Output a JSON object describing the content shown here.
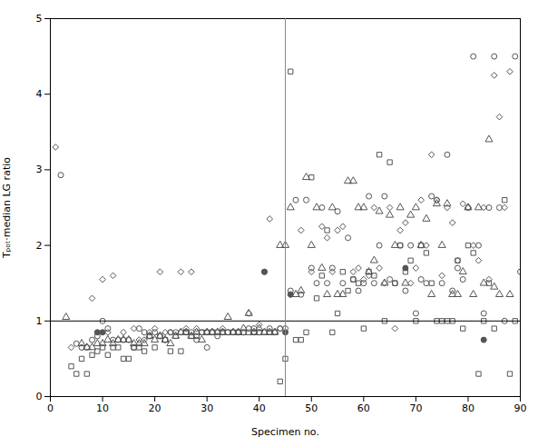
{
  "chart_data": {
    "type": "scatter",
    "xlabel": "Specimen no.",
    "ylabel": "Tₚₒₜ·median LG ratio",
    "xlim": [
      0,
      90
    ],
    "ylim": [
      0,
      5
    ],
    "xticks": [
      0,
      10,
      20,
      30,
      40,
      50,
      60,
      70,
      80,
      90
    ],
    "yticks": [
      0,
      1,
      2,
      3,
      4,
      5
    ],
    "grid": false,
    "series": [
      {
        "marker": "diamond",
        "color": "#555555",
        "x": [
          1,
          4,
          8,
          10,
          11,
          12,
          14,
          16,
          17,
          18,
          19,
          20,
          21,
          22,
          23,
          25,
          26,
          27,
          28,
          30,
          33,
          36,
          38,
          39,
          40,
          42,
          44,
          46,
          48,
          50,
          52,
          53,
          54,
          55,
          56,
          58,
          59,
          60,
          61,
          62,
          63,
          64,
          65,
          66,
          67,
          68,
          69,
          70,
          71,
          72,
          73,
          74,
          75,
          76,
          77,
          78,
          79,
          80,
          81,
          82,
          83,
          84,
          85,
          86,
          87,
          88
        ],
        "values": [
          3.3,
          0.65,
          1.3,
          1.55,
          0.85,
          1.6,
          0.85,
          0.9,
          0.75,
          0.75,
          0.85,
          0.9,
          1.65,
          0.85,
          0.85,
          1.65,
          0.9,
          1.65,
          0.9,
          0.85,
          0.9,
          0.85,
          1.1,
          0.85,
          0.95,
          2.35,
          0.9,
          1.35,
          2.2,
          1.65,
          2.25,
          2.1,
          1.65,
          2.2,
          2.25,
          1.65,
          1.7,
          1.55,
          1.6,
          2.5,
          1.7,
          1.5,
          2.5,
          0.9,
          2.2,
          2.3,
          1.5,
          1.7,
          2.6,
          2.0,
          3.2,
          2.6,
          1.6,
          2.5,
          2.3,
          1.8,
          2.55,
          2.5,
          2.0,
          1.8,
          2.5,
          1.55,
          4.25,
          3.7,
          2.5,
          4.3
        ]
      },
      {
        "marker": "circle",
        "color": "#555555",
        "x": [
          2,
          5,
          6,
          7,
          8,
          9,
          10,
          11,
          12,
          13,
          14,
          15,
          16,
          17,
          18,
          19,
          20,
          21,
          22,
          23,
          24,
          25,
          26,
          27,
          28,
          29,
          30,
          31,
          32,
          33,
          34,
          35,
          36,
          37,
          38,
          39,
          40,
          41,
          42,
          43,
          44,
          45,
          46,
          47,
          48,
          49,
          50,
          51,
          52,
          53,
          54,
          55,
          56,
          57,
          58,
          59,
          60,
          61,
          62,
          63,
          64,
          65,
          66,
          67,
          68,
          69,
          70,
          71,
          72,
          73,
          74,
          75,
          76,
          77,
          78,
          79,
          80,
          81,
          82,
          83,
          84,
          85,
          86,
          87,
          89,
          90
        ],
        "values": [
          2.93,
          0.7,
          0.65,
          0.65,
          0.75,
          0.8,
          1.0,
          0.9,
          0.75,
          0.75,
          0.75,
          0.75,
          0.65,
          0.9,
          0.85,
          0.8,
          0.85,
          0.8,
          0.75,
          0.85,
          0.85,
          0.85,
          0.85,
          0.85,
          0.75,
          0.85,
          0.65,
          0.85,
          0.8,
          0.85,
          0.85,
          0.85,
          0.85,
          0.85,
          0.9,
          0.9,
          0.85,
          1.65,
          0.9,
          0.85,
          0.9,
          0.9,
          1.4,
          2.6,
          1.35,
          2.6,
          1.7,
          1.5,
          2.5,
          1.5,
          1.7,
          2.45,
          1.5,
          2.1,
          1.55,
          1.4,
          1.5,
          2.65,
          1.5,
          2.0,
          2.65,
          1.55,
          1.5,
          2.0,
          1.4,
          2.0,
          1.1,
          1.55,
          1.5,
          2.65,
          2.6,
          1.5,
          3.2,
          1.4,
          1.7,
          1.55,
          2.5,
          4.5,
          2.0,
          1.1,
          2.5,
          4.5,
          2.5,
          1.0,
          4.5,
          1.65
        ]
      },
      {
        "marker": "triangle",
        "color": "#555555",
        "x": [
          3,
          6,
          7,
          8,
          9,
          10,
          11,
          12,
          13,
          14,
          15,
          16,
          17,
          18,
          19,
          20,
          21,
          22,
          23,
          24,
          25,
          26,
          27,
          28,
          29,
          30,
          31,
          32,
          33,
          34,
          35,
          36,
          37,
          38,
          39,
          40,
          41,
          42,
          43,
          44,
          45,
          46,
          47,
          48,
          49,
          50,
          51,
          52,
          53,
          54,
          55,
          56,
          57,
          58,
          59,
          60,
          61,
          62,
          63,
          64,
          65,
          66,
          67,
          68,
          69,
          70,
          71,
          72,
          73,
          74,
          75,
          76,
          77,
          78,
          79,
          80,
          81,
          82,
          83,
          84,
          85,
          86,
          88
        ],
        "values": [
          1.05,
          0.7,
          0.65,
          0.65,
          0.7,
          0.7,
          0.75,
          0.7,
          0.75,
          0.75,
          0.75,
          0.7,
          0.7,
          0.7,
          0.8,
          0.75,
          0.8,
          0.75,
          0.7,
          0.8,
          0.85,
          0.85,
          0.8,
          0.85,
          0.75,
          0.85,
          0.85,
          0.85,
          0.85,
          1.05,
          0.85,
          0.85,
          0.9,
          1.1,
          0.85,
          0.9,
          0.85,
          0.85,
          0.85,
          2.0,
          2.0,
          2.5,
          1.35,
          1.4,
          2.9,
          2.0,
          2.5,
          1.7,
          1.35,
          2.5,
          1.35,
          1.35,
          2.85,
          2.85,
          2.5,
          2.5,
          1.65,
          1.8,
          2.45,
          1.5,
          2.4,
          2.0,
          2.5,
          1.5,
          2.4,
          2.5,
          2.0,
          2.35,
          1.35,
          2.55,
          2.0,
          2.55,
          1.35,
          1.35,
          1.65,
          2.5,
          1.35,
          2.5,
          1.5,
          3.4,
          1.45,
          1.35,
          1.35
        ]
      },
      {
        "marker": "square",
        "color": "#555555",
        "x": [
          4,
          5,
          6,
          7,
          8,
          9,
          10,
          11,
          12,
          13,
          14,
          15,
          16,
          17,
          18,
          19,
          20,
          21,
          22,
          23,
          24,
          25,
          26,
          27,
          28,
          29,
          30,
          31,
          32,
          33,
          34,
          35,
          36,
          37,
          38,
          39,
          40,
          41,
          42,
          43,
          44,
          45,
          46,
          47,
          48,
          49,
          50,
          51,
          52,
          53,
          54,
          55,
          56,
          57,
          58,
          59,
          60,
          61,
          62,
          63,
          64,
          65,
          66,
          67,
          68,
          69,
          70,
          71,
          72,
          73,
          74,
          75,
          76,
          77,
          78,
          79,
          80,
          81,
          82,
          83,
          84,
          85,
          87,
          88,
          89
        ],
        "values": [
          0.4,
          0.3,
          0.5,
          0.3,
          0.55,
          0.6,
          0.65,
          0.55,
          0.65,
          0.65,
          0.5,
          0.5,
          0.65,
          0.65,
          0.6,
          0.8,
          0.65,
          0.8,
          0.75,
          0.6,
          0.8,
          0.6,
          0.85,
          0.8,
          0.8,
          0.85,
          0.85,
          0.85,
          0.85,
          0.85,
          0.85,
          0.85,
          0.85,
          0.85,
          0.85,
          0.85,
          0.85,
          0.85,
          0.85,
          0.85,
          0.2,
          0.5,
          4.3,
          0.75,
          0.75,
          0.85,
          2.9,
          1.3,
          1.6,
          2.2,
          0.85,
          1.1,
          1.65,
          1.4,
          1.55,
          1.5,
          0.9,
          1.65,
          1.6,
          3.2,
          1.0,
          3.1,
          1.5,
          2.0,
          1.65,
          1.8,
          1.0,
          2.0,
          1.9,
          1.5,
          1.0,
          1.0,
          1.0,
          1.0,
          1.8,
          0.9,
          2.0,
          1.9,
          0.3,
          1.0,
          1.5,
          0.9,
          2.6,
          0.3,
          1.0
        ]
      },
      {
        "marker": "filled_circle",
        "color": "#555555",
        "x": [
          9,
          10,
          41,
          45,
          46,
          68,
          83
        ],
        "values": [
          0.85,
          0.85,
          1.65,
          0.85,
          1.35,
          1.7,
          0.75
        ]
      }
    ],
    "hline": {
      "y": 1.0,
      "color": "#000000"
    },
    "vline": {
      "x": 45.0,
      "color": "#888888"
    }
  }
}
